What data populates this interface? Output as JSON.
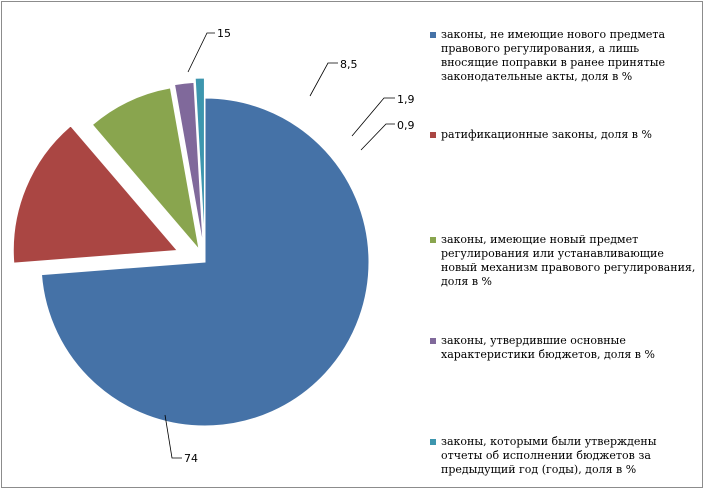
{
  "chart_data": {
    "type": "pie",
    "exploded": true,
    "slices": [
      {
        "label": "законы, не имеющие нового предмета правового регулирования, а лишь вносящие поправки в ранее принятые законодательные акты, доля в %",
        "value": 74,
        "value_label": "74",
        "color": "#4572A7"
      },
      {
        "label": "ратификационные законы, доля в %",
        "value": 15,
        "value_label": "15",
        "color": "#AA4643"
      },
      {
        "label": "законы, имеющие новый предмет регулирования или устанавливающие новый механизм правового регулирования, доля в %",
        "value": 8.5,
        "value_label": "8,5",
        "color": "#89A54E"
      },
      {
        "label": "законы, утвердившие основные характеристики бюджетов, доля в %",
        "value": 1.9,
        "value_label": "1,9",
        "color": "#80699B"
      },
      {
        "label": "законы, которыми были утверждены отчеты об исполнении бюджетов за предыдущий год (годы), доля в %",
        "value": 0.9,
        "value_label": "0,9",
        "color": "#3D96AE"
      }
    ],
    "legend_position": "right"
  }
}
